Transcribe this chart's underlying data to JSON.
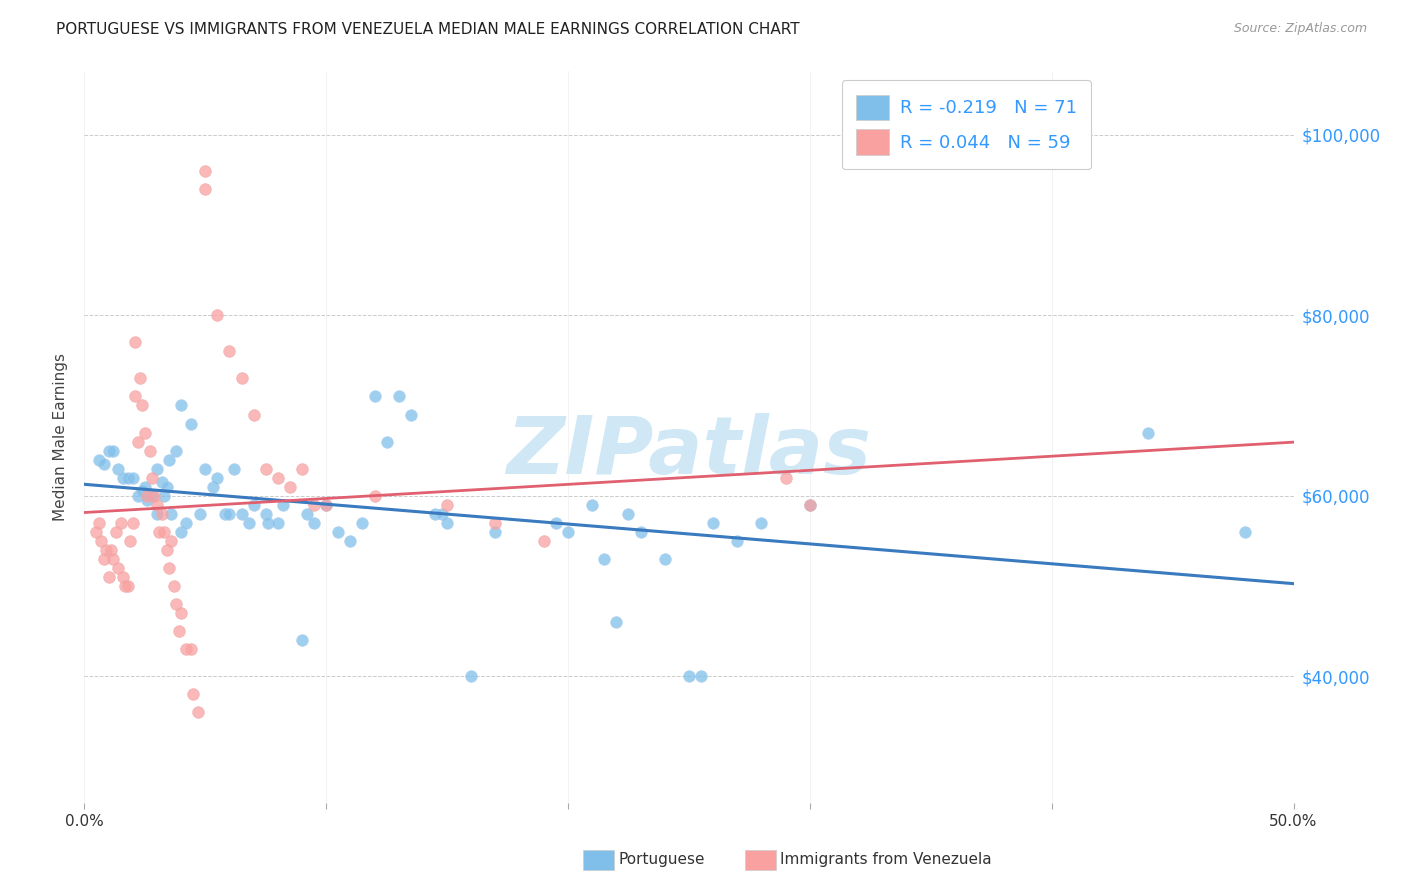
{
  "title": "PORTUGUESE VS IMMIGRANTS FROM VENEZUELA MEDIAN MALE EARNINGS CORRELATION CHART",
  "source": "Source: ZipAtlas.com",
  "ylabel": "Median Male Earnings",
  "y_ticks": [
    40000,
    60000,
    80000,
    100000
  ],
  "y_tick_labels": [
    "$40,000",
    "$60,000",
    "$80,000",
    "$100,000"
  ],
  "x_min": 0.0,
  "x_max": 0.5,
  "y_min": 26000,
  "y_max": 107000,
  "legend_label_blue": "Portuguese",
  "legend_label_pink": "Immigrants from Venezuela",
  "blue_color": "#7fbfea",
  "pink_color": "#f9a0a0",
  "trendline_blue_color": "#3a7abf",
  "trendline_pink_color": "#e06070",
  "legend_text_color": "#3399ff",
  "watermark": "ZIPatlas",
  "watermark_color": "#d0e8f5",
  "blue_scatter": [
    [
      0.006,
      64000
    ],
    [
      0.008,
      63500
    ],
    [
      0.01,
      65000
    ],
    [
      0.012,
      65000
    ],
    [
      0.014,
      63000
    ],
    [
      0.016,
      62000
    ],
    [
      0.018,
      62000
    ],
    [
      0.02,
      62000
    ],
    [
      0.022,
      60000
    ],
    [
      0.024,
      60500
    ],
    [
      0.025,
      61000
    ],
    [
      0.026,
      59500
    ],
    [
      0.028,
      60000
    ],
    [
      0.03,
      63000
    ],
    [
      0.03,
      58000
    ],
    [
      0.032,
      61500
    ],
    [
      0.033,
      60000
    ],
    [
      0.034,
      61000
    ],
    [
      0.035,
      64000
    ],
    [
      0.036,
      58000
    ],
    [
      0.038,
      65000
    ],
    [
      0.04,
      70000
    ],
    [
      0.04,
      56000
    ],
    [
      0.042,
      57000
    ],
    [
      0.044,
      68000
    ],
    [
      0.048,
      58000
    ],
    [
      0.05,
      63000
    ],
    [
      0.053,
      61000
    ],
    [
      0.055,
      62000
    ],
    [
      0.058,
      58000
    ],
    [
      0.06,
      58000
    ],
    [
      0.062,
      63000
    ],
    [
      0.065,
      58000
    ],
    [
      0.068,
      57000
    ],
    [
      0.07,
      59000
    ],
    [
      0.075,
      58000
    ],
    [
      0.076,
      57000
    ],
    [
      0.08,
      57000
    ],
    [
      0.082,
      59000
    ],
    [
      0.09,
      44000
    ],
    [
      0.092,
      58000
    ],
    [
      0.095,
      57000
    ],
    [
      0.1,
      59000
    ],
    [
      0.105,
      56000
    ],
    [
      0.11,
      55000
    ],
    [
      0.115,
      57000
    ],
    [
      0.12,
      71000
    ],
    [
      0.125,
      66000
    ],
    [
      0.13,
      71000
    ],
    [
      0.135,
      69000
    ],
    [
      0.145,
      58000
    ],
    [
      0.148,
      58000
    ],
    [
      0.15,
      57000
    ],
    [
      0.16,
      40000
    ],
    [
      0.17,
      56000
    ],
    [
      0.195,
      57000
    ],
    [
      0.2,
      56000
    ],
    [
      0.21,
      59000
    ],
    [
      0.215,
      53000
    ],
    [
      0.22,
      46000
    ],
    [
      0.225,
      58000
    ],
    [
      0.23,
      56000
    ],
    [
      0.24,
      53000
    ],
    [
      0.25,
      40000
    ],
    [
      0.255,
      40000
    ],
    [
      0.26,
      57000
    ],
    [
      0.27,
      55000
    ],
    [
      0.28,
      57000
    ],
    [
      0.3,
      59000
    ],
    [
      0.44,
      67000
    ],
    [
      0.48,
      56000
    ]
  ],
  "pink_scatter": [
    [
      0.005,
      56000
    ],
    [
      0.006,
      57000
    ],
    [
      0.007,
      55000
    ],
    [
      0.008,
      53000
    ],
    [
      0.009,
      54000
    ],
    [
      0.01,
      51000
    ],
    [
      0.011,
      54000
    ],
    [
      0.012,
      53000
    ],
    [
      0.013,
      56000
    ],
    [
      0.014,
      52000
    ],
    [
      0.015,
      57000
    ],
    [
      0.016,
      51000
    ],
    [
      0.017,
      50000
    ],
    [
      0.018,
      50000
    ],
    [
      0.019,
      55000
    ],
    [
      0.02,
      57000
    ],
    [
      0.021,
      71000
    ],
    [
      0.021,
      77000
    ],
    [
      0.022,
      66000
    ],
    [
      0.023,
      73000
    ],
    [
      0.024,
      70000
    ],
    [
      0.025,
      67000
    ],
    [
      0.026,
      60000
    ],
    [
      0.027,
      65000
    ],
    [
      0.028,
      62000
    ],
    [
      0.029,
      60000
    ],
    [
      0.03,
      59000
    ],
    [
      0.031,
      56000
    ],
    [
      0.032,
      58000
    ],
    [
      0.033,
      56000
    ],
    [
      0.034,
      54000
    ],
    [
      0.035,
      52000
    ],
    [
      0.036,
      55000
    ],
    [
      0.037,
      50000
    ],
    [
      0.038,
      48000
    ],
    [
      0.039,
      45000
    ],
    [
      0.04,
      47000
    ],
    [
      0.042,
      43000
    ],
    [
      0.044,
      43000
    ],
    [
      0.045,
      38000
    ],
    [
      0.047,
      36000
    ],
    [
      0.05,
      94000
    ],
    [
      0.05,
      96000
    ],
    [
      0.055,
      80000
    ],
    [
      0.06,
      76000
    ],
    [
      0.065,
      73000
    ],
    [
      0.07,
      69000
    ],
    [
      0.075,
      63000
    ],
    [
      0.08,
      62000
    ],
    [
      0.085,
      61000
    ],
    [
      0.09,
      63000
    ],
    [
      0.095,
      59000
    ],
    [
      0.1,
      59000
    ],
    [
      0.12,
      60000
    ],
    [
      0.15,
      59000
    ],
    [
      0.17,
      57000
    ],
    [
      0.19,
      55000
    ],
    [
      0.29,
      62000
    ],
    [
      0.3,
      59000
    ]
  ]
}
